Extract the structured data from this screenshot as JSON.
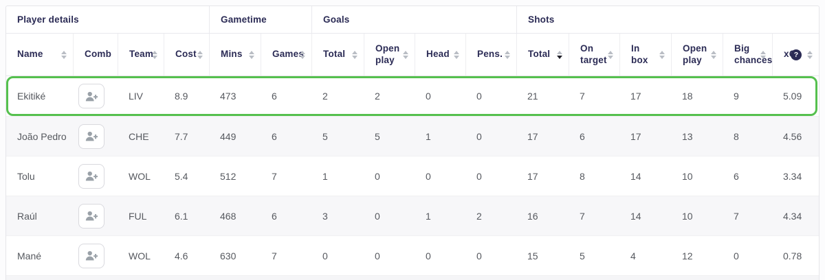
{
  "table": {
    "groups": [
      {
        "label": "Player details",
        "span": 4
      },
      {
        "label": "Gametime",
        "span": 2
      },
      {
        "label": "Goals",
        "span": 4
      },
      {
        "label": "Shots",
        "span": 6
      }
    ],
    "columns": [
      {
        "key": "name",
        "label": "Name",
        "sortable": true
      },
      {
        "key": "comb",
        "label": "Comb",
        "sortable": false
      },
      {
        "key": "team",
        "label": "Team",
        "sortable": true
      },
      {
        "key": "cost",
        "label": "Cost",
        "sortable": true
      },
      {
        "key": "mins",
        "label": "Mins",
        "sortable": true
      },
      {
        "key": "games",
        "label": "Games",
        "sortable": true
      },
      {
        "key": "goals_total",
        "label": "Total",
        "sortable": true
      },
      {
        "key": "goals_open_play",
        "label": "Open play",
        "sortable": true
      },
      {
        "key": "goals_head",
        "label": "Head",
        "sortable": true
      },
      {
        "key": "goals_pens",
        "label": "Pens.",
        "sortable": true
      },
      {
        "key": "shots_total",
        "label": "Total",
        "sortable": true,
        "sorted": "desc"
      },
      {
        "key": "shots_on_target",
        "label": "On target",
        "sortable": true
      },
      {
        "key": "shots_in_box",
        "label": "In box",
        "sortable": true
      },
      {
        "key": "shots_open_play",
        "label": "Open play",
        "sortable": true
      },
      {
        "key": "big_chances",
        "label": "Big chances",
        "sortable": true
      },
      {
        "key": "xg",
        "label": "xG",
        "sortable": true,
        "info": true,
        "info_glyph": "?"
      }
    ],
    "add_button_icon": "person-add-icon",
    "rows": [
      {
        "name": "Ekitiké",
        "team": "LIV",
        "cost": "8.9",
        "mins": "473",
        "games": "6",
        "goals_total": "2",
        "goals_open_play": "2",
        "goals_head": "0",
        "goals_pens": "0",
        "shots_total": "21",
        "shots_on_target": "7",
        "shots_in_box": "17",
        "shots_open_play": "18",
        "big_chances": "9",
        "xg": "5.09",
        "highlighted": true
      },
      {
        "name": "João Pedro",
        "team": "CHE",
        "cost": "7.7",
        "mins": "449",
        "games": "6",
        "goals_total": "5",
        "goals_open_play": "5",
        "goals_head": "1",
        "goals_pens": "0",
        "shots_total": "17",
        "shots_on_target": "6",
        "shots_in_box": "17",
        "shots_open_play": "13",
        "big_chances": "8",
        "xg": "4.56",
        "highlighted": false
      },
      {
        "name": "Tolu",
        "team": "WOL",
        "cost": "5.4",
        "mins": "512",
        "games": "7",
        "goals_total": "1",
        "goals_open_play": "0",
        "goals_head": "0",
        "goals_pens": "0",
        "shots_total": "17",
        "shots_on_target": "8",
        "shots_in_box": "14",
        "shots_open_play": "10",
        "big_chances": "6",
        "xg": "3.34",
        "highlighted": false
      },
      {
        "name": "Raúl",
        "team": "FUL",
        "cost": "6.1",
        "mins": "468",
        "games": "6",
        "goals_total": "3",
        "goals_open_play": "0",
        "goals_head": "1",
        "goals_pens": "2",
        "shots_total": "16",
        "shots_on_target": "7",
        "shots_in_box": "14",
        "shots_open_play": "10",
        "big_chances": "7",
        "xg": "4.34",
        "highlighted": false
      },
      {
        "name": "Mané",
        "team": "WOL",
        "cost": "4.6",
        "mins": "630",
        "games": "7",
        "goals_total": "0",
        "goals_open_play": "0",
        "goals_head": "0",
        "goals_pens": "0",
        "shots_total": "15",
        "shots_on_target": "5",
        "shots_in_box": "4",
        "shots_open_play": "12",
        "big_chances": "0",
        "xg": "0.78",
        "highlighted": false
      }
    ],
    "colors": {
      "highlight_green": "#55c04e",
      "header_navy": "#2b2b55",
      "data_text": "#55585e",
      "alt_row_bg": "#f7f7f9",
      "sort_arrow_gray": "#b9bdc4",
      "sort_arrow_active": "#1f1f28"
    }
  }
}
